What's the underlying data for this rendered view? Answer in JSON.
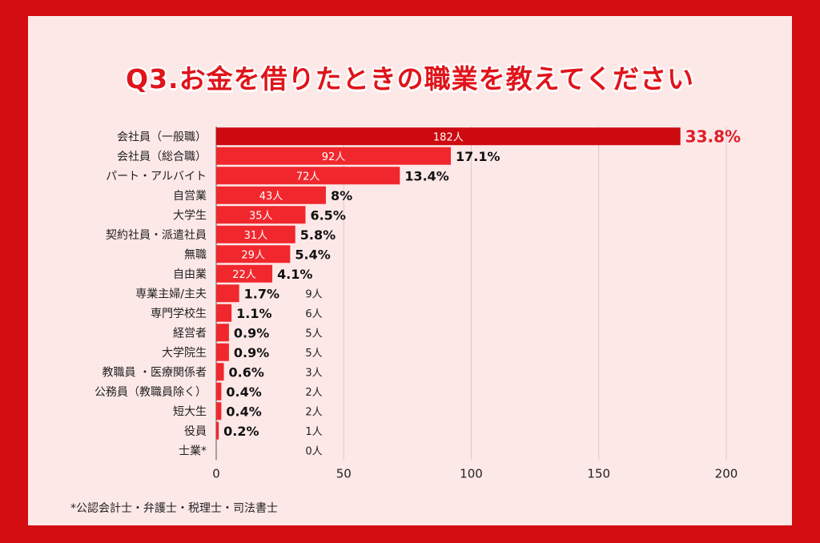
{
  "title": "Q3.お金を借りたときの職業を教えてください",
  "footnote": "*公認会計士・弁護士・税理士・司法書士",
  "colors": {
    "frame": "#d40d12",
    "panel": "#fde8e8",
    "bar": "#f0282e",
    "bar_top": "#cc0a10",
    "title": "#e0141b",
    "top_percent": "#e0202a"
  },
  "chart_data": {
    "type": "bar",
    "orientation": "horizontal",
    "categories": [
      "会社員（一般職）",
      "会社員（総合職）",
      "パート・アルバイト",
      "自営業",
      "大学生",
      "契約社員・派遣社員",
      "無職",
      "自由業",
      "専業主婦/主夫",
      "専門学校生",
      "経営者",
      "大学院生",
      "教職員 ・医療関係者",
      "公務員（教職員除く）",
      "短大生",
      "役員",
      "士業*"
    ],
    "values": [
      182,
      92,
      72,
      43,
      35,
      31,
      29,
      22,
      9,
      6,
      5,
      5,
      3,
      2,
      2,
      1,
      0
    ],
    "count_labels": [
      "182人",
      "92人",
      "72人",
      "43人",
      "35人",
      "31人",
      "29人",
      "22人",
      "9人",
      "6人",
      "5人",
      "5人",
      "3人",
      "2人",
      "2人",
      "1人",
      "0人"
    ],
    "percent_labels": [
      "33.8%",
      "17.1%",
      "13.4%",
      "8%",
      "6.5%",
      "5.8%",
      "5.4%",
      "4.1%",
      "1.7%",
      "1.1%",
      "0.9%",
      "0.9%",
      "0.6%",
      "0.4%",
      "0.4%",
      "0.2%",
      ""
    ],
    "x_ticks": [
      0,
      50,
      100,
      150,
      200
    ],
    "xlim": [
      0,
      200
    ],
    "grid": true
  }
}
